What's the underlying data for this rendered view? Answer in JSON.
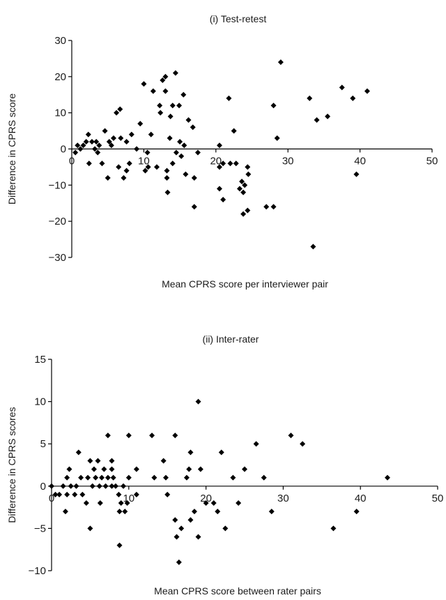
{
  "chart_data": [
    {
      "type": "scatter",
      "title": "(i) Test-retest",
      "xlabel": "Mean CPRS score per interviewer pair",
      "ylabel": "Difference in CPRS score",
      "xlim": [
        0,
        50
      ],
      "ylim": [
        -30,
        30
      ],
      "xticks": [
        "0",
        "10",
        "20",
        "30",
        "40",
        "50"
      ],
      "yticks": [
        "30",
        "20",
        "10",
        "0",
        "−10",
        "−20",
        "−30"
      ],
      "marker": "diamond",
      "marker_color": "#000000",
      "grid": false,
      "points": [
        [
          0.5,
          -1
        ],
        [
          0.8,
          1
        ],
        [
          1.2,
          0
        ],
        [
          1.6,
          1
        ],
        [
          2,
          2
        ],
        [
          2.3,
          4
        ],
        [
          2.4,
          -4
        ],
        [
          2.8,
          2
        ],
        [
          3.2,
          0
        ],
        [
          3.4,
          2
        ],
        [
          3.6,
          -1
        ],
        [
          3.8,
          1
        ],
        [
          4.2,
          -4
        ],
        [
          4.6,
          5
        ],
        [
          5,
          -8
        ],
        [
          5.2,
          2
        ],
        [
          5.5,
          1
        ],
        [
          5.8,
          3
        ],
        [
          6.2,
          10
        ],
        [
          6.5,
          -5
        ],
        [
          6.7,
          11
        ],
        [
          6.8,
          3
        ],
        [
          7.2,
          -8
        ],
        [
          7.6,
          -6
        ],
        [
          7.6,
          2
        ],
        [
          8,
          -4
        ],
        [
          8.3,
          4
        ],
        [
          9,
          0
        ],
        [
          9.5,
          7
        ],
        [
          10,
          18
        ],
        [
          10.2,
          -6
        ],
        [
          10.5,
          -1
        ],
        [
          10.6,
          -5
        ],
        [
          11,
          4
        ],
        [
          11.3,
          16
        ],
        [
          11.8,
          -5
        ],
        [
          12.2,
          12
        ],
        [
          12.3,
          10
        ],
        [
          12.6,
          19
        ],
        [
          13,
          20
        ],
        [
          13,
          16
        ],
        [
          13.2,
          -6
        ],
        [
          13.2,
          -8
        ],
        [
          13.3,
          -12
        ],
        [
          13.6,
          3
        ],
        [
          13.7,
          9
        ],
        [
          14,
          12
        ],
        [
          14,
          -4
        ],
        [
          14.4,
          21
        ],
        [
          14.5,
          -1
        ],
        [
          14.9,
          12
        ],
        [
          15,
          2
        ],
        [
          15.2,
          -2
        ],
        [
          15.5,
          15
        ],
        [
          15.6,
          1
        ],
        [
          15.8,
          -7
        ],
        [
          16.2,
          8
        ],
        [
          16.8,
          6
        ],
        [
          17,
          -16
        ],
        [
          17,
          -8
        ],
        [
          17.5,
          -1
        ],
        [
          20.5,
          -5
        ],
        [
          20.5,
          -11
        ],
        [
          20.5,
          1
        ],
        [
          21,
          -14
        ],
        [
          21,
          -4
        ],
        [
          21.8,
          14
        ],
        [
          22,
          -4
        ],
        [
          22.5,
          5
        ],
        [
          22.8,
          -4
        ],
        [
          23.3,
          -11
        ],
        [
          23.6,
          -9
        ],
        [
          23.8,
          -12
        ],
        [
          23.8,
          -18
        ],
        [
          24,
          -10
        ],
        [
          24.4,
          -5
        ],
        [
          24.4,
          -17
        ],
        [
          24.5,
          -7
        ],
        [
          27,
          -16
        ],
        [
          28,
          -16
        ],
        [
          28,
          12
        ],
        [
          28.5,
          3
        ],
        [
          29,
          24
        ],
        [
          33,
          14
        ],
        [
          33.5,
          -27
        ],
        [
          34,
          8
        ],
        [
          35.5,
          9
        ],
        [
          37.5,
          17
        ],
        [
          39,
          14
        ],
        [
          39.5,
          -7
        ],
        [
          41,
          16
        ]
      ]
    },
    {
      "type": "scatter",
      "title": "(ii) Inter-rater",
      "xlabel": "Mean CPRS score between rater pairs",
      "ylabel": "Difference in CPRS scores",
      "xlim": [
        0,
        50
      ],
      "ylim": [
        -10,
        15
      ],
      "xticks": [
        "0",
        "10",
        "20",
        "30",
        "40",
        "50"
      ],
      "yticks": [
        "15",
        "10",
        "5",
        "0",
        "−5",
        "−10"
      ],
      "marker": "diamond",
      "marker_color": "#000000",
      "grid": false,
      "points": [
        [
          0,
          0
        ],
        [
          0.5,
          -1
        ],
        [
          1,
          -1
        ],
        [
          1.5,
          0
        ],
        [
          1.8,
          -3
        ],
        [
          2,
          1
        ],
        [
          2,
          -1
        ],
        [
          2.3,
          2
        ],
        [
          2.5,
          0
        ],
        [
          3,
          -1
        ],
        [
          3.2,
          0
        ],
        [
          3.5,
          4
        ],
        [
          3.8,
          1
        ],
        [
          4,
          -1
        ],
        [
          4.5,
          -2
        ],
        [
          4.7,
          1
        ],
        [
          5,
          -5
        ],
        [
          5,
          3
        ],
        [
          5.3,
          0
        ],
        [
          5.5,
          2
        ],
        [
          5.7,
          1
        ],
        [
          6,
          3
        ],
        [
          6.2,
          0
        ],
        [
          6.3,
          -2
        ],
        [
          6.5,
          1
        ],
        [
          6.8,
          2
        ],
        [
          7,
          0
        ],
        [
          7.3,
          6
        ],
        [
          7.3,
          1
        ],
        [
          7.8,
          3
        ],
        [
          7.8,
          2
        ],
        [
          7.8,
          0
        ],
        [
          8,
          1
        ],
        [
          8.3,
          0
        ],
        [
          8.7,
          -1
        ],
        [
          8.8,
          -7
        ],
        [
          8.8,
          -3
        ],
        [
          9,
          -2
        ],
        [
          9.3,
          0
        ],
        [
          9.5,
          -3
        ],
        [
          9.8,
          -2
        ],
        [
          10,
          6
        ],
        [
          10,
          1
        ],
        [
          11,
          -1
        ],
        [
          11,
          2
        ],
        [
          13,
          6
        ],
        [
          13.3,
          1
        ],
        [
          14.5,
          3
        ],
        [
          14.8,
          1
        ],
        [
          15,
          -1
        ],
        [
          16,
          6
        ],
        [
          16,
          -4
        ],
        [
          16.2,
          -6
        ],
        [
          16.5,
          -9
        ],
        [
          16.8,
          -5
        ],
        [
          17.5,
          1
        ],
        [
          17.8,
          2
        ],
        [
          18,
          4
        ],
        [
          18,
          -4
        ],
        [
          18.5,
          -3
        ],
        [
          19,
          10
        ],
        [
          19,
          -6
        ],
        [
          19.3,
          2
        ],
        [
          20,
          -2
        ],
        [
          21,
          -2
        ],
        [
          21.5,
          -3
        ],
        [
          22,
          4
        ],
        [
          22.5,
          -5
        ],
        [
          23.5,
          1
        ],
        [
          24.2,
          -2
        ],
        [
          25,
          2
        ],
        [
          26.5,
          5
        ],
        [
          27.5,
          1
        ],
        [
          28.5,
          -3
        ],
        [
          31,
          6
        ],
        [
          32.5,
          5
        ],
        [
          36.5,
          -5
        ],
        [
          39.5,
          -3
        ],
        [
          43.5,
          1
        ]
      ]
    }
  ]
}
